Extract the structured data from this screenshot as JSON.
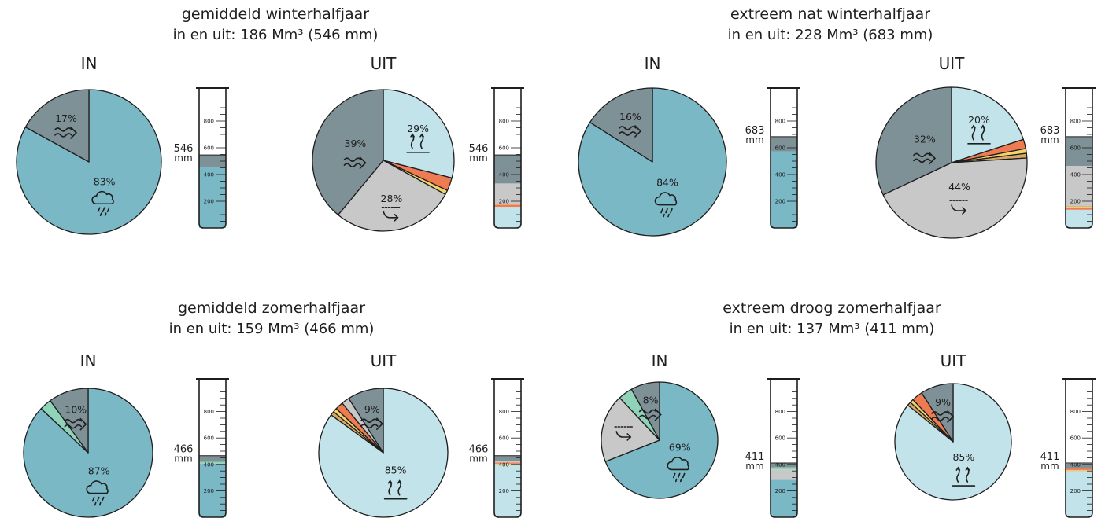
{
  "colors": {
    "neerslag": "#7bb8c6",
    "grondwater": "#7e9197",
    "verdamping": "#c2e3ea",
    "afvoer": "#c8c8c8",
    "oranje": "#ef7b52",
    "geel": "#f3d36b",
    "bruin": "#d9a766",
    "groen": "#8fd4b8",
    "outline": "#1e1e1e"
  },
  "labels": {
    "in": "IN",
    "uit": "UIT",
    "mm": "mm"
  },
  "cylinder_ticks": [
    "800",
    "600",
    "400",
    "200"
  ],
  "chart_data": [
    {
      "type": "pie",
      "title": "gemiddeld winterhalfjaar",
      "subtitle": "in en uit: 186 Mm³ (546 mm)",
      "total_label": "546",
      "in": {
        "slices": [
          {
            "key": "neerslag",
            "value": 83,
            "label": "83%",
            "icon": "rain-cloud-icon"
          },
          {
            "key": "grondwater",
            "value": 17,
            "label": "17%",
            "icon": "wave-arrow-icon"
          }
        ]
      },
      "uit": {
        "slices": [
          {
            "key": "verdamping",
            "value": 29,
            "label": "29%",
            "icon": "evaporation-icon"
          },
          {
            "key": "oranje",
            "value": 3,
            "label": ""
          },
          {
            "key": "geel",
            "value": 1,
            "label": ""
          },
          {
            "key": "afvoer",
            "value": 28,
            "label": "28%",
            "icon": "drainage-icon"
          },
          {
            "key": "grondwater",
            "value": 39,
            "label": "39%",
            "icon": "wave-arrow-icon"
          }
        ]
      }
    },
    {
      "type": "pie",
      "title": "extreem nat winterhalfjaar",
      "subtitle": "in en uit: 228 Mm³ (683 mm)",
      "total_label": "683",
      "in": {
        "slices": [
          {
            "key": "neerslag",
            "value": 84,
            "label": "84%",
            "icon": "rain-cloud-icon"
          },
          {
            "key": "grondwater",
            "value": 16,
            "label": "16%",
            "icon": "wave-arrow-icon"
          }
        ]
      },
      "uit": {
        "slices": [
          {
            "key": "verdamping",
            "value": 20,
            "label": "20%",
            "icon": "evaporation-icon"
          },
          {
            "key": "oranje",
            "value": 2,
            "label": ""
          },
          {
            "key": "geel",
            "value": 1,
            "label": ""
          },
          {
            "key": "bruin",
            "value": 1,
            "label": ""
          },
          {
            "key": "afvoer",
            "value": 44,
            "label": "44%",
            "icon": "drainage-icon"
          },
          {
            "key": "grondwater",
            "value": 32,
            "label": "32%",
            "icon": "wave-arrow-icon"
          }
        ]
      }
    },
    {
      "type": "pie",
      "title": "gemiddeld zomerhalfjaar",
      "subtitle": "in en uit: 159 Mm³ (466 mm)",
      "total_label": "466",
      "in": {
        "slices": [
          {
            "key": "neerslag",
            "value": 87,
            "label": "87%",
            "icon": "rain-cloud-icon"
          },
          {
            "key": "groen",
            "value": 3,
            "label": ""
          },
          {
            "key": "grondwater",
            "value": 10,
            "label": "10%",
            "icon": "wave-arrow-icon"
          }
        ]
      },
      "uit": {
        "slices": [
          {
            "key": "verdamping",
            "value": 85,
            "label": "85%",
            "icon": "evaporation-icon"
          },
          {
            "key": "bruin",
            "value": 1,
            "label": ""
          },
          {
            "key": "geel",
            "value": 1,
            "label": ""
          },
          {
            "key": "oranje",
            "value": 2,
            "label": ""
          },
          {
            "key": "afvoer",
            "value": 2,
            "label": ""
          },
          {
            "key": "grondwater",
            "value": 9,
            "label": "9%",
            "icon": "wave-arrow-icon"
          }
        ]
      }
    },
    {
      "type": "pie",
      "title": "extreem droog zomerhalfjaar",
      "subtitle": "in en uit: 137 Mm³ (411 mm)",
      "total_label": "411",
      "in": {
        "slices": [
          {
            "key": "neerslag",
            "value": 69,
            "label": "69%",
            "icon": "rain-cloud-icon"
          },
          {
            "key": "afvoer",
            "value": 19,
            "label": "",
            "icon": "drainage-icon"
          },
          {
            "key": "groen",
            "value": 4,
            "label": ""
          },
          {
            "key": "grondwater",
            "value": 8,
            "label": "8%",
            "icon": "wave-arrow-icon"
          }
        ]
      },
      "uit": {
        "slices": [
          {
            "key": "verdamping",
            "value": 85,
            "label": "85%",
            "icon": "evaporation-icon"
          },
          {
            "key": "bruin",
            "value": 1,
            "label": ""
          },
          {
            "key": "geel",
            "value": 1,
            "label": ""
          },
          {
            "key": "oranje",
            "value": 3,
            "label": ""
          },
          {
            "key": "grondwater",
            "value": 9,
            "label": "9%",
            "icon": "wave-arrow-icon"
          }
        ]
      }
    }
  ]
}
